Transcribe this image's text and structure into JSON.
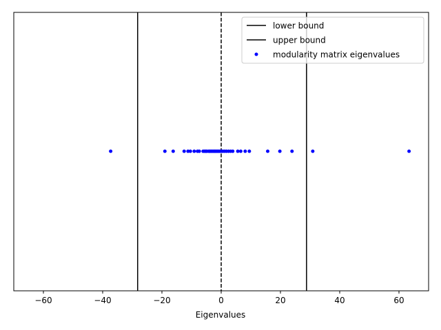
{
  "chart_data": {
    "type": "scatter",
    "xlabel": "Eigenvalues",
    "ylabel": "",
    "title": "",
    "xlim": [
      -70,
      70
    ],
    "x_ticks": [
      -60,
      -40,
      -20,
      0,
      20,
      40,
      60
    ],
    "x_tick_labels": [
      "−60",
      "−40",
      "−20",
      "0",
      "20",
      "40",
      "60"
    ],
    "y_ticks_visible": false,
    "grid": false,
    "legend_position": "top-right",
    "vertical_lines": [
      {
        "name": "lower bound",
        "x": -28.2,
        "style": "solid",
        "color": "#000000"
      },
      {
        "name": "upper bound",
        "x": 28.8,
        "style": "solid",
        "color": "#000000"
      },
      {
        "name": "",
        "x": 0,
        "style": "dashed",
        "color": "#000000"
      }
    ],
    "series": [
      {
        "name": "modularity matrix eigenvalues",
        "color": "#0000ff",
        "x": [
          -37.3,
          -19.0,
          -16.2,
          -12.5,
          -11.2,
          -10.4,
          -9.1,
          -8.0,
          -7.4,
          -6.1,
          -5.6,
          -5.2,
          -4.8,
          -4.2,
          -3.9,
          -3.5,
          -3.1,
          -2.7,
          -2.3,
          -2.0,
          -1.6,
          -1.2,
          -0.8,
          -0.4,
          0.1,
          0.6,
          1.2,
          1.8,
          2.5,
          3.2,
          3.9,
          5.6,
          6.6,
          8.1,
          9.5,
          15.7,
          19.8,
          23.9,
          30.9,
          63.4
        ],
        "y": [
          0,
          0,
          0,
          0,
          0,
          0,
          0,
          0,
          0,
          0,
          0,
          0,
          0,
          0,
          0,
          0,
          0,
          0,
          0,
          0,
          0,
          0,
          0,
          0,
          0,
          0,
          0,
          0,
          0,
          0,
          0,
          0,
          0,
          0,
          0,
          0,
          0,
          0,
          0,
          0
        ]
      }
    ]
  }
}
